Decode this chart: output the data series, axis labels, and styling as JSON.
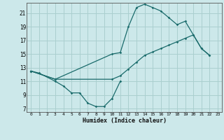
{
  "xlabel": "Humidex (Indice chaleur)",
  "bg_color": "#cce8ea",
  "grid_color": "#aacfcf",
  "line_color": "#1a6b6b",
  "xlim": [
    -0.5,
    23.5
  ],
  "ylim": [
    6.5,
    22.5
  ],
  "yticks": [
    7,
    9,
    11,
    13,
    15,
    17,
    19,
    21
  ],
  "xticks": [
    0,
    1,
    2,
    3,
    4,
    5,
    6,
    7,
    8,
    9,
    10,
    11,
    12,
    13,
    14,
    15,
    16,
    17,
    18,
    19,
    20,
    21,
    22,
    23
  ],
  "s1x": [
    0,
    1,
    3,
    4,
    5,
    6,
    7,
    8,
    9,
    10,
    11
  ],
  "s1y": [
    12.5,
    12.2,
    11.0,
    10.3,
    9.3,
    9.3,
    7.8,
    7.3,
    7.3,
    8.5,
    11.0
  ],
  "s2x": [
    0,
    3,
    10,
    11,
    12,
    13,
    14,
    15,
    16,
    17,
    18,
    19,
    20,
    21,
    22
  ],
  "s2y": [
    12.5,
    11.3,
    15.0,
    15.2,
    19.0,
    21.8,
    22.3,
    21.8,
    21.3,
    20.3,
    19.3,
    19.8,
    17.8,
    15.8,
    14.8
  ],
  "s3x": [
    0,
    3,
    10,
    11,
    12,
    13,
    14,
    15,
    16,
    17,
    18,
    19,
    20,
    21,
    22
  ],
  "s3y": [
    12.5,
    11.3,
    11.3,
    11.8,
    12.8,
    13.8,
    14.8,
    15.3,
    15.8,
    16.3,
    16.8,
    17.3,
    17.8,
    15.8,
    14.8
  ]
}
